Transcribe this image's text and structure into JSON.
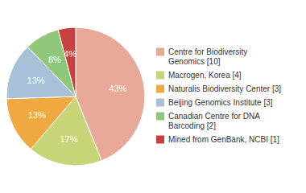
{
  "chart_data": {
    "type": "pie",
    "categories": [
      "Centre for Biodiversity\nGenomics [10]",
      "Macrogen, Korea [4]",
      "Naturalis Biodiversity Center [3]",
      "Beijing Genomics Institute [3]",
      "Canadian Centre for DNA\nBarcoding [2]",
      "Mined from GenBank, NCBI [1]"
    ],
    "values": [
      43,
      17,
      13,
      13,
      8,
      4
    ],
    "value_labels": [
      "43%",
      "17%",
      "13%",
      "13%",
      "8%",
      "4%"
    ],
    "colors": [
      "#e8a898",
      "#c8d478",
      "#f0a840",
      "#a8c0d8",
      "#8ec87a",
      "#c84040"
    ],
    "data_labels": true,
    "legend": "right"
  }
}
